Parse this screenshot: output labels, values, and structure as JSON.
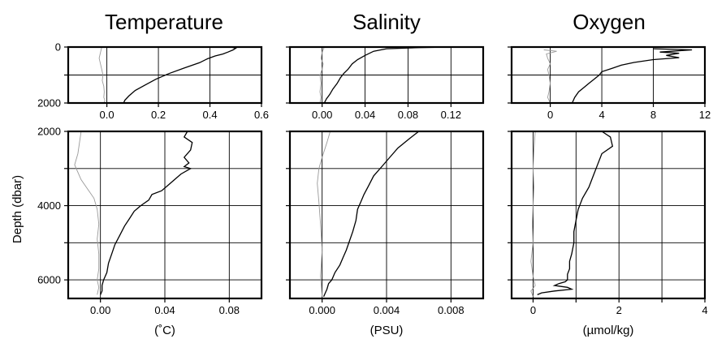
{
  "chart_data": [
    {
      "type": "line",
      "title": "Temperature",
      "xlim": [
        -0.15,
        0.6
      ],
      "ylim": [
        0,
        2000
      ],
      "xticks": [
        0.0,
        0.2,
        0.4,
        0.6
      ],
      "xtick_labels": [
        "0.0",
        "0.2",
        "0.4",
        "0.6"
      ],
      "yticks": [
        0,
        1000,
        2000
      ],
      "ytick_labels": [
        "0",
        "",
        "2000"
      ],
      "grid": true,
      "series": [
        {
          "role": "mean",
          "x": [
            0.48,
            0.5,
            0.49,
            0.47,
            0.45,
            0.42,
            0.39,
            0.36,
            0.3,
            0.24,
            0.19,
            0.15,
            0.11,
            0.085,
            0.07,
            0.065
          ],
          "y": [
            0,
            40,
            100,
            180,
            250,
            320,
            420,
            560,
            750,
            950,
            1150,
            1350,
            1550,
            1750,
            1900,
            2000
          ]
        },
        {
          "role": "std",
          "x": [
            -0.02,
            -0.025,
            -0.03,
            -0.025,
            -0.02,
            -0.015,
            -0.018,
            -0.012,
            -0.01,
            -0.012,
            -0.008,
            -0.01
          ],
          "y": [
            0,
            200,
            400,
            600,
            800,
            1000,
            1200,
            1400,
            1600,
            1800,
            1900,
            2000
          ]
        }
      ]
    },
    {
      "type": "line",
      "title": "",
      "xlim": [
        -0.02,
        0.1
      ],
      "ylim": [
        2000,
        6500
      ],
      "xticks": [
        0.0,
        0.04,
        0.08
      ],
      "xtick_labels": [
        "0.00",
        "0.04",
        "0.08"
      ],
      "yticks": [
        2000,
        3000,
        4000,
        5000,
        6000
      ],
      "ytick_labels": [
        "2000",
        "",
        "4000",
        "",
        "6000"
      ],
      "xlabel": "(˚C)",
      "grid": true,
      "series": [
        {
          "role": "mean",
          "x": [
            0.054,
            0.052,
            0.057,
            0.056,
            0.052,
            0.055,
            0.052,
            0.056,
            0.05,
            0.046,
            0.042,
            0.038,
            0.032,
            0.03,
            0.025,
            0.021,
            0.018,
            0.015,
            0.012,
            0.009,
            0.007,
            0.005,
            0.004,
            0.002,
            0.001,
            0.001,
            0.0
          ],
          "y": [
            2000,
            2150,
            2300,
            2500,
            2700,
            2850,
            2950,
            3000,
            3150,
            3300,
            3450,
            3600,
            3700,
            3850,
            4000,
            4150,
            4350,
            4550,
            4800,
            5050,
            5300,
            5550,
            5800,
            6000,
            6150,
            6300,
            6400
          ]
        },
        {
          "role": "std",
          "x": [
            -0.012,
            -0.013,
            -0.014,
            -0.016,
            -0.014,
            -0.012,
            -0.008,
            -0.004,
            -0.002,
            -0.001,
            -0.002,
            -0.001,
            -0.001,
            -0.002,
            -0.001,
            -0.002
          ],
          "y": [
            2000,
            2300,
            2600,
            2900,
            3100,
            3300,
            3550,
            3800,
            4100,
            4500,
            4900,
            5300,
            5700,
            6000,
            6200,
            6400
          ]
        }
      ]
    },
    {
      "type": "line",
      "title": "Salinity",
      "xlim": [
        -0.03,
        0.15
      ],
      "ylim": [
        0,
        2000
      ],
      "xticks": [
        0.0,
        0.04,
        0.08,
        0.12
      ],
      "xtick_labels": [
        "0.00",
        "0.04",
        "0.08",
        "0.12"
      ],
      "yticks": [
        0,
        1000,
        2000
      ],
      "ytick_labels": [
        "",
        "",
        ""
      ],
      "grid": true,
      "series": [
        {
          "role": "mean",
          "x": [
            0.12,
            0.09,
            0.06,
            0.048,
            0.04,
            0.033,
            0.028,
            0.024,
            0.02,
            0.017,
            0.014,
            0.01,
            0.007,
            0.004,
            0.002
          ],
          "y": [
            0,
            20,
            60,
            150,
            300,
            450,
            600,
            800,
            950,
            1100,
            1300,
            1500,
            1700,
            1850,
            2000
          ]
        },
        {
          "role": "std",
          "x": [
            0.002,
            0.0,
            -0.001,
            0.001,
            0.0,
            -0.002,
            -0.001,
            -0.002,
            -0.001,
            -0.002
          ],
          "y": [
            0,
            200,
            400,
            600,
            800,
            1000,
            1300,
            1600,
            1800,
            2000
          ]
        }
      ]
    },
    {
      "type": "line",
      "title": "",
      "xlim": [
        -0.002,
        0.01
      ],
      "ylim": [
        2000,
        6500
      ],
      "xticks": [
        0.0,
        0.004,
        0.008
      ],
      "xtick_labels": [
        "0.000",
        "0.004",
        "0.008"
      ],
      "yticks": [
        2000,
        3000,
        4000,
        5000,
        6000
      ],
      "ytick_labels": [
        "",
        "",
        "",
        "",
        ""
      ],
      "xlabel": "(PSU)",
      "grid": true,
      "series": [
        {
          "role": "mean",
          "x": [
            0.006,
            0.0054,
            0.0047,
            0.0042,
            0.0037,
            0.0032,
            0.0029,
            0.0026,
            0.0024,
            0.0022,
            0.0021,
            0.0019,
            0.0017,
            0.0015,
            0.0013,
            0.0011,
            0.0008,
            0.0006,
            0.0004,
            0.0003,
            0.0002,
            0.0001
          ],
          "y": [
            2000,
            2200,
            2450,
            2700,
            2950,
            3200,
            3450,
            3700,
            3900,
            4100,
            4400,
            4700,
            4950,
            5200,
            5400,
            5600,
            5800,
            6000,
            6100,
            6250,
            6350,
            6450
          ]
        },
        {
          "role": "std",
          "x": [
            0.0005,
            0.0003,
            0.0,
            -0.0002,
            -0.0003,
            -0.0002,
            -0.0001,
            0.0,
            -0.0001,
            0.0
          ],
          "y": [
            2000,
            2300,
            2700,
            3000,
            3400,
            3900,
            4500,
            5200,
            5900,
            6450
          ]
        }
      ]
    },
    {
      "type": "line",
      "title": "Oxygen",
      "xlim": [
        -3,
        12
      ],
      "ylim": [
        0,
        2000
      ],
      "xticks": [
        0,
        4,
        8,
        12
      ],
      "xtick_labels": [
        "0",
        "4",
        "8",
        "12"
      ],
      "yticks": [
        0,
        1000,
        2000
      ],
      "ytick_labels": [
        "",
        "",
        ""
      ],
      "grid": true,
      "series": [
        {
          "role": "mean",
          "x": [
            8.0,
            11.0,
            8.5,
            10.0,
            9.0,
            10.0,
            8.0,
            6.5,
            5.5,
            4.8,
            4.0,
            3.8,
            3.4,
            3.0,
            2.6,
            2.2,
            1.9,
            1.7
          ],
          "y": [
            60,
            100,
            180,
            220,
            300,
            380,
            450,
            550,
            650,
            760,
            880,
            1000,
            1150,
            1300,
            1450,
            1600,
            1800,
            2000
          ]
        },
        {
          "role": "std",
          "x": [
            -0.5,
            0.5,
            -0.3,
            -0.2,
            0.0,
            -0.2,
            -0.1,
            0.0,
            -0.1,
            -0.2,
            0.0
          ],
          "y": [
            100,
            150,
            250,
            400,
            600,
            800,
            1000,
            1300,
            1600,
            1800,
            2000
          ]
        }
      ]
    },
    {
      "type": "line",
      "title": "",
      "xlim": [
        -0.5,
        4
      ],
      "ylim": [
        2000,
        6500
      ],
      "xticks": [
        0,
        1,
        2,
        3,
        4
      ],
      "xtick_labels": [
        "0",
        "",
        "2",
        "",
        "4"
      ],
      "yticks": [
        2000,
        3000,
        4000,
        5000,
        6000
      ],
      "ytick_labels": [
        "",
        "",
        "",
        "",
        ""
      ],
      "xlabel": "(µmol/kg)",
      "grid": true,
      "series": [
        {
          "role": "mean",
          "x": [
            1.6,
            1.8,
            1.85,
            1.6,
            1.5,
            1.4,
            1.3,
            1.15,
            1.05,
            1.0,
            0.95,
            0.95,
            0.9,
            0.85,
            0.85,
            0.8,
            0.8,
            0.75,
            0.6,
            0.5,
            0.8,
            0.9,
            0.5,
            0.2,
            0.1
          ],
          "y": [
            2000,
            2150,
            2400,
            2600,
            2900,
            3200,
            3500,
            3800,
            4100,
            4400,
            4700,
            5000,
            5300,
            5500,
            5700,
            5850,
            6000,
            6050,
            6100,
            6150,
            6200,
            6250,
            6300,
            6350,
            6400
          ]
        },
        {
          "role": "std",
          "x": [
            0.05,
            0.02,
            0.0,
            0.02,
            0.0,
            -0.02,
            0.0,
            -0.05,
            0.0,
            0.05,
            -0.05,
            0.0
          ],
          "y": [
            2000,
            2500,
            3000,
            3500,
            4000,
            4500,
            5000,
            5500,
            5900,
            6150,
            6300,
            6450
          ]
        }
      ]
    }
  ],
  "column_titles": [
    "Temperature",
    "Salinity",
    "Oxygen"
  ],
  "ylabel": "Depth (dbar)",
  "colors": {
    "mean": "#000000",
    "std": "#9a9a9a",
    "grid": "#000000"
  }
}
